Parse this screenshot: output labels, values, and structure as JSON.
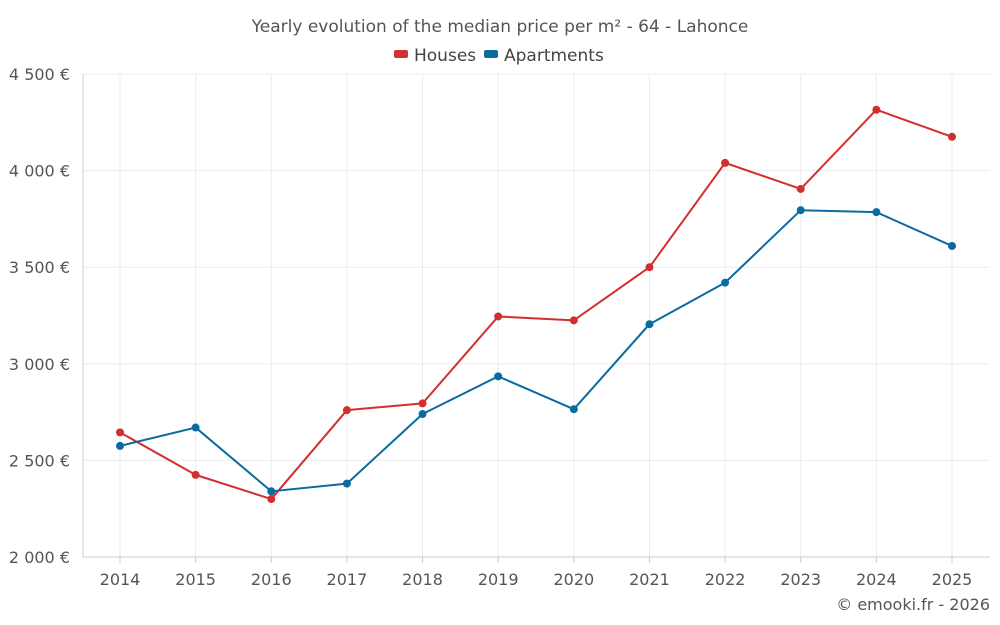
{
  "chart_data": {
    "type": "line",
    "title": "Yearly evolution of the median price per m² - 64 - Lahonce",
    "categories": [
      "2014",
      "2015",
      "2016",
      "2017",
      "2018",
      "2019",
      "2020",
      "2021",
      "2022",
      "2023",
      "2024",
      "2025"
    ],
    "series": [
      {
        "name": "Houses",
        "color": "#d32f2f",
        "values": [
          2645,
          2425,
          2300,
          2760,
          2795,
          3245,
          3225,
          3500,
          4040,
          3905,
          4315,
          4175
        ]
      },
      {
        "name": "Apartments",
        "color": "#0a6aa1",
        "values": [
          2575,
          2670,
          2340,
          2380,
          2740,
          2935,
          2765,
          3205,
          3420,
          3795,
          3785,
          3610
        ]
      }
    ],
    "ylim": [
      2000,
      4500
    ],
    "yticks": [
      2000,
      2500,
      3000,
      3500,
      4000,
      4500
    ],
    "ytick_labels": [
      "2 000 €",
      "2 500 €",
      "3 000 €",
      "3 500 €",
      "4 000 €",
      "4 500 €"
    ],
    "xlabel": "",
    "ylabel": "",
    "grid": true,
    "legend_position": "top-center"
  },
  "credit": "© emooki.fr - 2026"
}
